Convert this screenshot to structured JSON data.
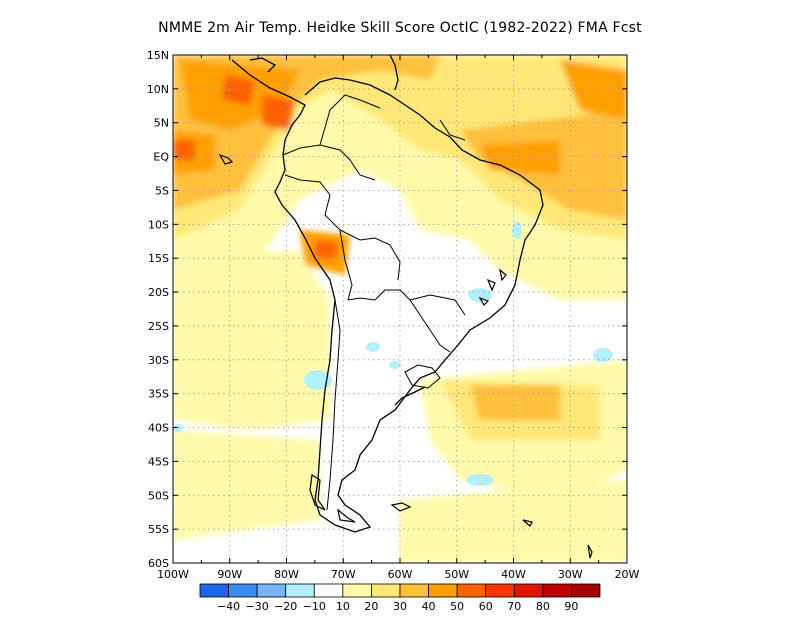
{
  "title": "NMME  2m Air Temp. Heidke Skill Score OctIC (1982-2022) FMA Fcst",
  "map": {
    "lat_labels": [
      "15N",
      "10N",
      "5N",
      "EQ",
      "5S",
      "10S",
      "15S",
      "20S",
      "25S",
      "30S",
      "35S",
      "40S",
      "45S",
      "50S",
      "55S",
      "60S"
    ],
    "lon_labels": [
      "100W",
      "90W",
      "80W",
      "70W",
      "60W",
      "50W",
      "40W",
      "30W",
      "20W"
    ]
  },
  "colorbar": {
    "colors": [
      "#1e64e6",
      "#3c8cf0",
      "#78b4f5",
      "#b4f0fa",
      "#ffffff",
      "#fffaaa",
      "#ffe878",
      "#ffc03c",
      "#ffa000",
      "#ff6000",
      "#ff3200",
      "#e11400",
      "#c00000",
      "#a50000"
    ],
    "labels": [
      "−40",
      "−30",
      "−20",
      "−10",
      "10",
      "20",
      "30",
      "40",
      "50",
      "60",
      "70",
      "80",
      "90"
    ]
  }
}
